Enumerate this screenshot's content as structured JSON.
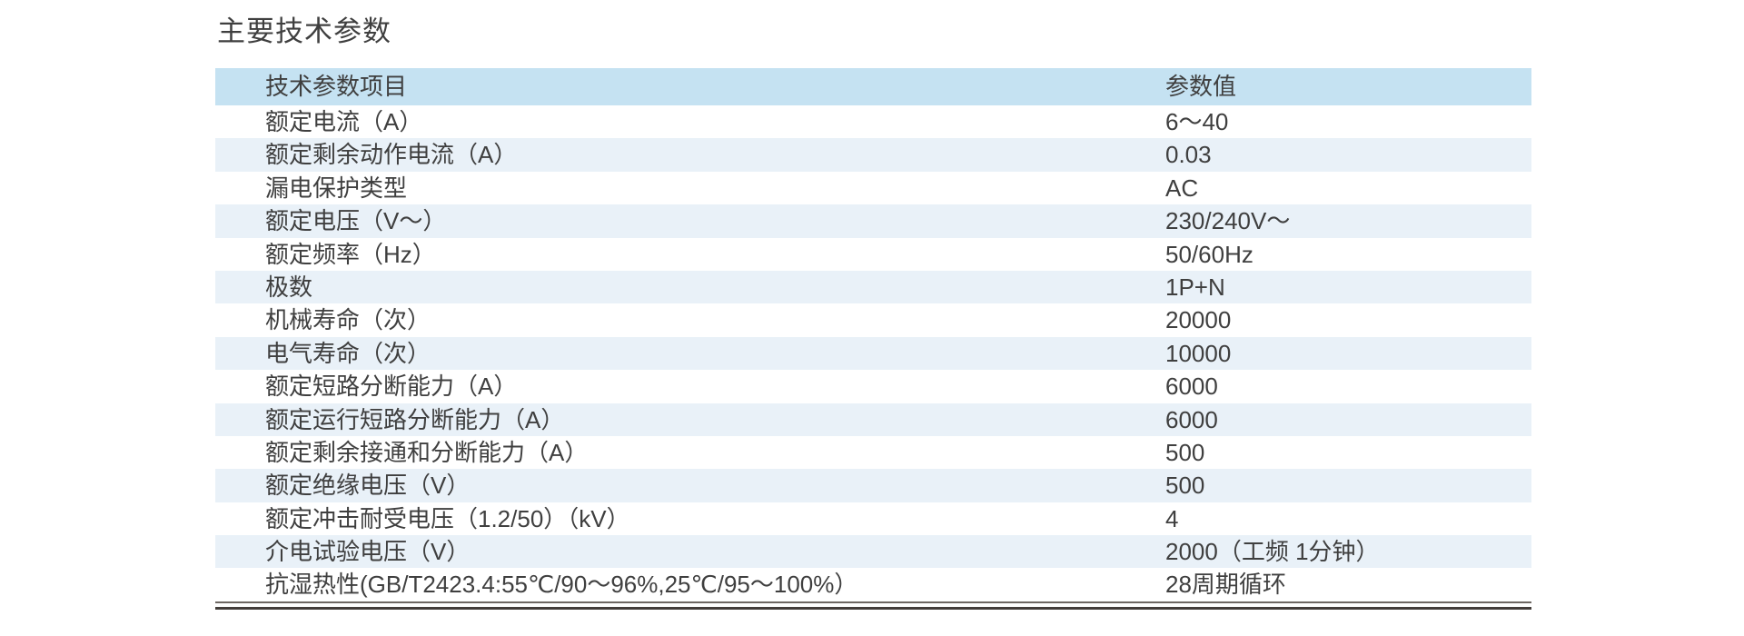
{
  "page_title": "主要技术参数",
  "table": {
    "headers": [
      "技术参数项目",
      "参数值"
    ],
    "rows": [
      {
        "label": "额定电流（A）",
        "value": "6～40"
      },
      {
        "label": "额定剩余动作电流（A）",
        "value": "0.03"
      },
      {
        "label": "漏电保护类型",
        "value": "AC"
      },
      {
        "label": "额定电压（V～）",
        "value": "230/240V～"
      },
      {
        "label": "额定频率（Hz）",
        "value": "50/60Hz"
      },
      {
        "label": "极数",
        "value": "1P+N"
      },
      {
        "label": "机械寿命（次）",
        "value": "20000"
      },
      {
        "label": "电气寿命（次）",
        "value": "10000"
      },
      {
        "label": "额定短路分断能力（A）",
        "value": "6000"
      },
      {
        "label": "额定运行短路分断能力（A）",
        "value": "6000"
      },
      {
        "label": "额定剩余接通和分断能力（A）",
        "value": "500"
      },
      {
        "label": "额定绝缘电压（V）",
        "value": "500"
      },
      {
        "label": "额定冲击耐受电压（1.2/50）（kV）",
        "value": "4"
      },
      {
        "label": "介电试验电压（V）",
        "value": "2000（工频 1分钟）"
      },
      {
        "label": "抗湿热性(GB/T2423.4:55℃/90～96%,25℃/95～100%）",
        "value": "28周期循环"
      }
    ]
  },
  "colors": {
    "header_bg": "#c5e2f2",
    "row_alt_bg": "#e9f1f8",
    "text": "#3f3f3f"
  }
}
